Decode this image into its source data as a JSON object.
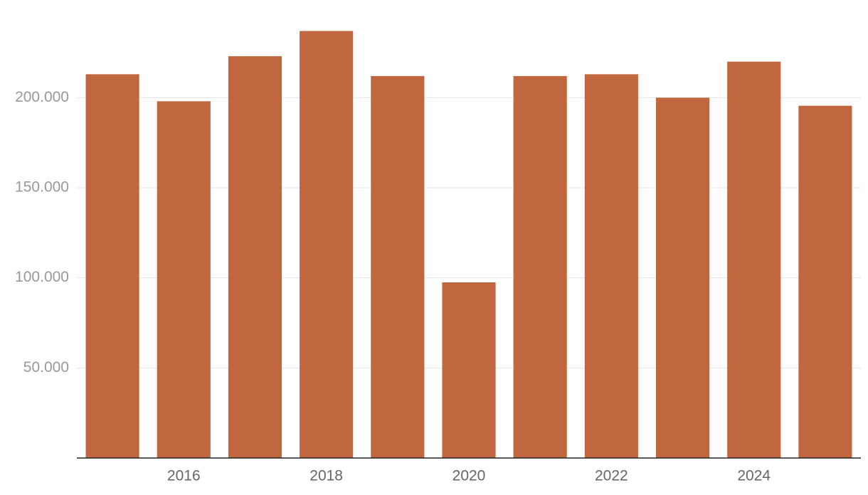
{
  "chart_data": {
    "type": "bar",
    "categories": [
      null,
      "2016",
      null,
      "2018",
      null,
      "2020",
      null,
      "2022",
      null,
      "2024",
      null
    ],
    "values": [
      213000,
      198000,
      223000,
      237000,
      212000,
      97500,
      212000,
      213000,
      200000,
      220000,
      195500
    ],
    "color": "#c0673f",
    "ylim": [
      0,
      250000
    ],
    "yticks": [
      {
        "value": 50000,
        "label": "50.000"
      },
      {
        "value": 100000,
        "label": "100.000"
      },
      {
        "value": 150000,
        "label": "150.000"
      },
      {
        "value": 200000,
        "label": "200.000"
      }
    ],
    "grid": true
  }
}
